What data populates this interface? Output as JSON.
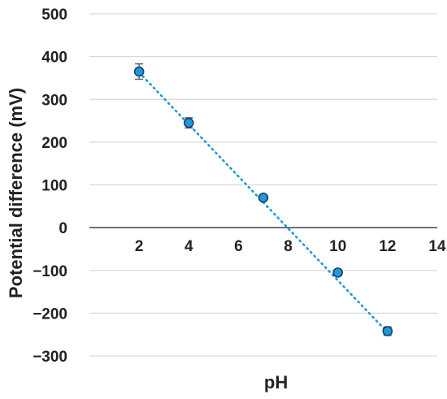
{
  "chart_data": {
    "type": "scatter",
    "title": "",
    "xlabel": "pH",
    "ylabel": "Potential difference (mV)",
    "xlim": [
      0,
      14
    ],
    "ylim": [
      -300,
      500
    ],
    "x_ticks": [
      2,
      4,
      6,
      8,
      10,
      12,
      14
    ],
    "y_ticks": [
      500,
      400,
      300,
      200,
      100,
      0,
      -100,
      -200,
      -300
    ],
    "y_tick_labels": [
      "500",
      "400",
      "300",
      "200",
      "100",
      "0",
      "−100",
      "−200",
      "−300"
    ],
    "grid": "horizontal",
    "legend": "none",
    "series": [
      {
        "x": [
          2,
          4,
          7,
          10,
          12
        ],
        "y": [
          365,
          245,
          70,
          -105,
          -242
        ],
        "error": [
          18,
          12,
          5,
          7,
          10
        ],
        "marker_color": "#1f9ad6",
        "marker_edge_color": "#1a3e6f",
        "trendline": {
          "style": "dotted",
          "color": "#1f9ad6",
          "x": [
            2,
            12
          ],
          "y": [
            363,
            -245
          ]
        }
      }
    ],
    "colors": {
      "grid": "#d9d9d9",
      "axis": "#404040",
      "error_bar": "#595959",
      "text": "#222222"
    }
  }
}
